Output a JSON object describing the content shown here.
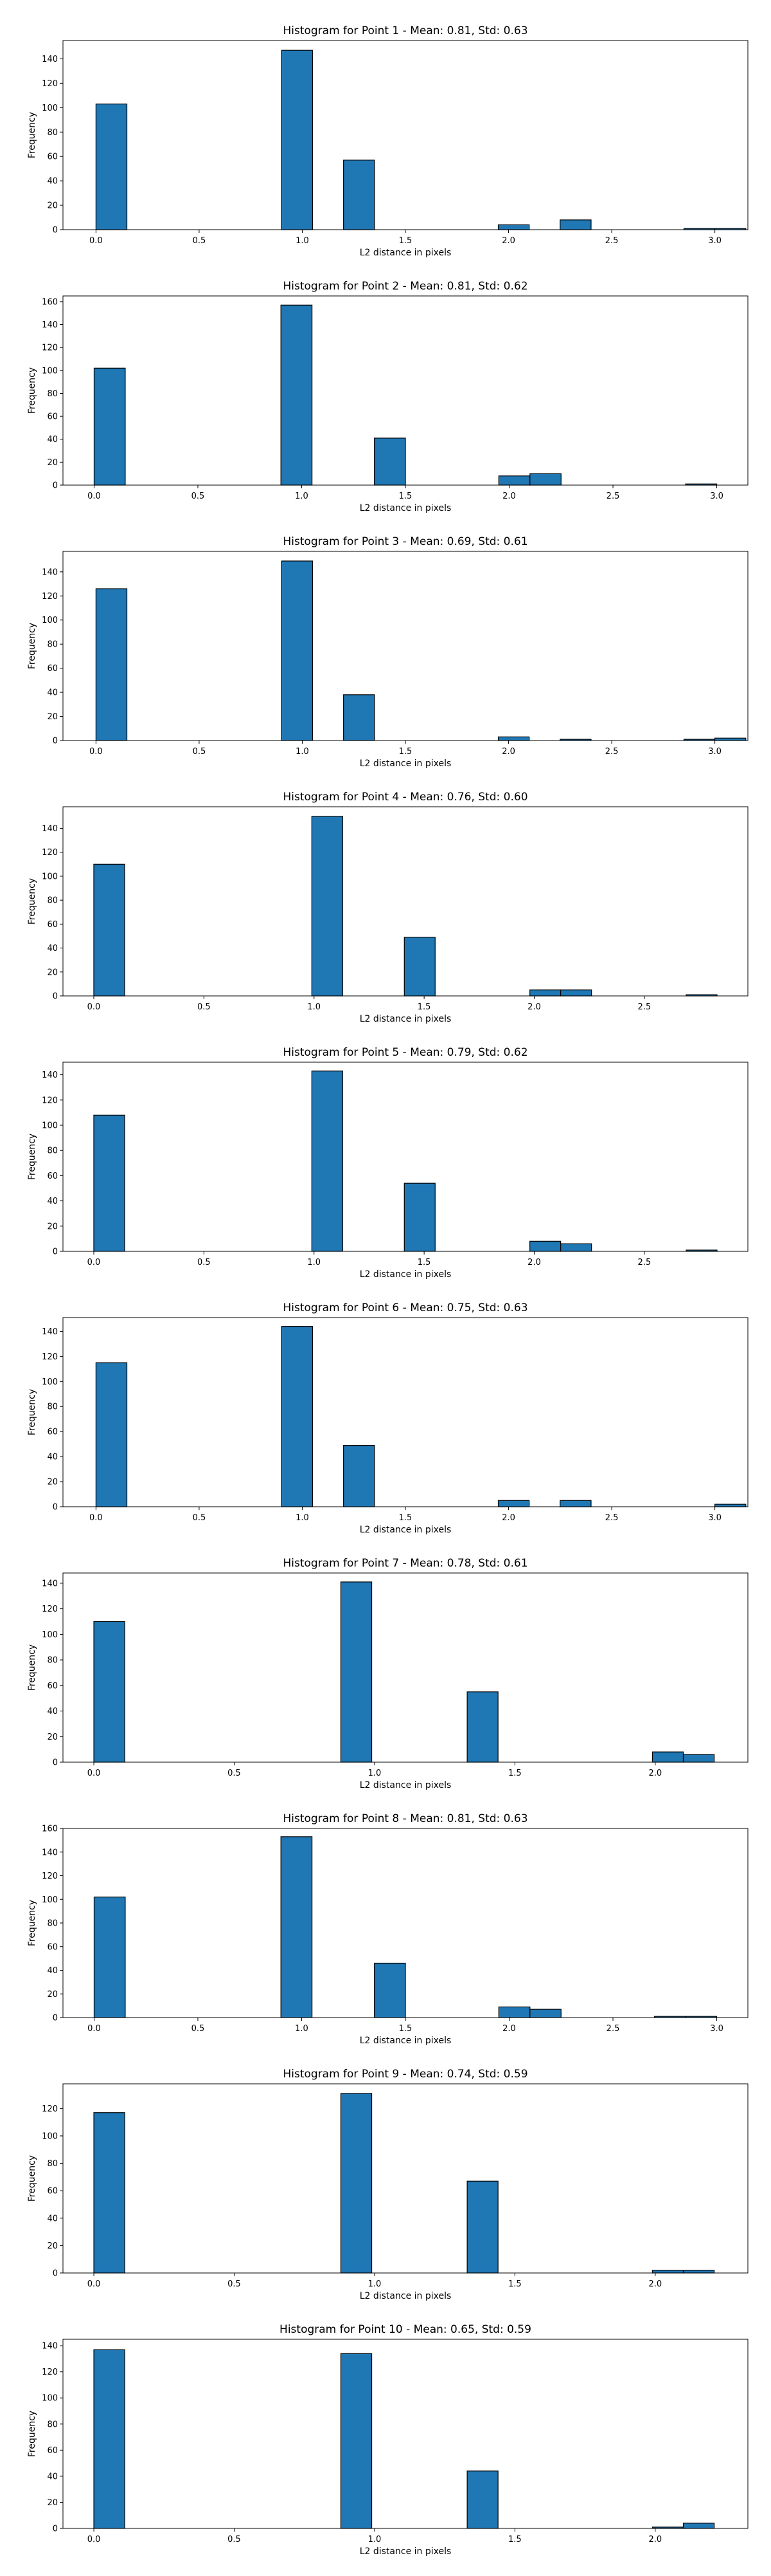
{
  "figure": {
    "background": "#ffffff"
  },
  "chart_data": [
    {
      "type": "bar",
      "title": "Histogram for Point 1 - Mean: 0.81, Std: 0.63",
      "xlabel": "L2 distance in pixels",
      "ylabel": "Frequency",
      "xlim": [
        -0.16,
        3.16
      ],
      "ylim": [
        0,
        155
      ],
      "xticks": [
        "0.0",
        "0.5",
        "1.0",
        "1.5",
        "2.0",
        "2.5",
        "3.0"
      ],
      "yticks": [
        "0",
        "20",
        "40",
        "60",
        "80",
        "100",
        "120",
        "140"
      ],
      "bar_color": "#1f77b4",
      "edge_color": "#000000",
      "bars": [
        {
          "x0": 0.0,
          "x1": 0.15,
          "value": 103
        },
        {
          "x0": 0.9,
          "x1": 1.05,
          "value": 147
        },
        {
          "x0": 1.2,
          "x1": 1.35,
          "value": 57
        },
        {
          "x0": 1.95,
          "x1": 2.1,
          "value": 4
        },
        {
          "x0": 2.1,
          "x1": 2.25,
          "value": 0
        },
        {
          "x0": 2.25,
          "x1": 2.4,
          "value": 8
        },
        {
          "x0": 2.85,
          "x1": 3.0,
          "value": 1
        },
        {
          "x0": 3.0,
          "x1": 3.15,
          "value": 1
        }
      ]
    },
    {
      "type": "bar",
      "title": "Histogram for Point 2 - Mean: 0.81, Std: 0.62",
      "xlabel": "L2 distance in pixels",
      "ylabel": "Frequency",
      "xlim": [
        -0.15,
        3.15
      ],
      "ylim": [
        0,
        165
      ],
      "xticks": [
        "0.0",
        "0.5",
        "1.0",
        "1.5",
        "2.0",
        "2.5",
        "3.0"
      ],
      "yticks": [
        "0",
        "20",
        "40",
        "60",
        "80",
        "100",
        "120",
        "140",
        "160"
      ],
      "bar_color": "#1f77b4",
      "edge_color": "#000000",
      "bars": [
        {
          "x0": 0.0,
          "x1": 0.15,
          "value": 102
        },
        {
          "x0": 0.9,
          "x1": 1.05,
          "value": 157
        },
        {
          "x0": 1.35,
          "x1": 1.5,
          "value": 41
        },
        {
          "x0": 1.95,
          "x1": 2.1,
          "value": 8
        },
        {
          "x0": 2.1,
          "x1": 2.25,
          "value": 10
        },
        {
          "x0": 2.85,
          "x1": 3.0,
          "value": 1
        }
      ]
    },
    {
      "type": "bar",
      "title": "Histogram for Point 3 - Mean: 0.69, Std: 0.61",
      "xlabel": "L2 distance in pixels",
      "ylabel": "Frequency",
      "xlim": [
        -0.16,
        3.16
      ],
      "ylim": [
        0,
        157
      ],
      "xticks": [
        "0.0",
        "0.5",
        "1.0",
        "1.5",
        "2.0",
        "2.5",
        "3.0"
      ],
      "yticks": [
        "0",
        "20",
        "40",
        "60",
        "80",
        "100",
        "120",
        "140"
      ],
      "bar_color": "#1f77b4",
      "edge_color": "#000000",
      "bars": [
        {
          "x0": 0.0,
          "x1": 0.15,
          "value": 126
        },
        {
          "x0": 0.9,
          "x1": 1.05,
          "value": 149
        },
        {
          "x0": 1.2,
          "x1": 1.35,
          "value": 38
        },
        {
          "x0": 1.95,
          "x1": 2.1,
          "value": 3
        },
        {
          "x0": 2.25,
          "x1": 2.4,
          "value": 1
        },
        {
          "x0": 2.85,
          "x1": 3.0,
          "value": 1
        },
        {
          "x0": 3.0,
          "x1": 3.15,
          "value": 2
        }
      ]
    },
    {
      "type": "bar",
      "title": "Histogram for Point 4 - Mean: 0.76, Std: 0.60",
      "xlabel": "L2 distance in pixels",
      "ylabel": "Frequency",
      "xlim": [
        -0.14,
        2.97
      ],
      "ylim": [
        0,
        158
      ],
      "xticks": [
        "0.0",
        "0.5",
        "1.0",
        "1.5",
        "2.0",
        "2.5"
      ],
      "yticks": [
        "0",
        "20",
        "40",
        "60",
        "80",
        "100",
        "120",
        "140"
      ],
      "bar_color": "#1f77b4",
      "edge_color": "#000000",
      "bars": [
        {
          "x0": 0.0,
          "x1": 0.14,
          "value": 110
        },
        {
          "x0": 0.99,
          "x1": 1.13,
          "value": 150
        },
        {
          "x0": 1.41,
          "x1": 1.55,
          "value": 49
        },
        {
          "x0": 1.98,
          "x1": 2.12,
          "value": 5
        },
        {
          "x0": 2.12,
          "x1": 2.26,
          "value": 5
        },
        {
          "x0": 2.69,
          "x1": 2.83,
          "value": 1
        }
      ]
    },
    {
      "type": "bar",
      "title": "Histogram for Point 5 - Mean: 0.79, Std: 0.62",
      "xlabel": "L2 distance in pixels",
      "ylabel": "Frequency",
      "xlim": [
        -0.14,
        2.97
      ],
      "ylim": [
        0,
        150
      ],
      "xticks": [
        "0.0",
        "0.5",
        "1.0",
        "1.5",
        "2.0",
        "2.5"
      ],
      "yticks": [
        "0",
        "20",
        "40",
        "60",
        "80",
        "100",
        "120",
        "140"
      ],
      "bar_color": "#1f77b4",
      "edge_color": "#000000",
      "bars": [
        {
          "x0": 0.0,
          "x1": 0.14,
          "value": 108
        },
        {
          "x0": 0.99,
          "x1": 1.13,
          "value": 143
        },
        {
          "x0": 1.41,
          "x1": 1.55,
          "value": 54
        },
        {
          "x0": 1.98,
          "x1": 2.12,
          "value": 8
        },
        {
          "x0": 2.12,
          "x1": 2.26,
          "value": 6
        },
        {
          "x0": 2.69,
          "x1": 2.83,
          "value": 1
        }
      ]
    },
    {
      "type": "bar",
      "title": "Histogram for Point 6 - Mean: 0.75, Std: 0.63",
      "xlabel": "L2 distance in pixels",
      "ylabel": "Frequency",
      "xlim": [
        -0.16,
        3.16
      ],
      "ylim": [
        0,
        151
      ],
      "xticks": [
        "0.0",
        "0.5",
        "1.0",
        "1.5",
        "2.0",
        "2.5",
        "3.0"
      ],
      "yticks": [
        "0",
        "20",
        "40",
        "60",
        "80",
        "100",
        "120",
        "140"
      ],
      "bar_color": "#1f77b4",
      "edge_color": "#000000",
      "bars": [
        {
          "x0": 0.0,
          "x1": 0.15,
          "value": 115
        },
        {
          "x0": 0.9,
          "x1": 1.05,
          "value": 144
        },
        {
          "x0": 1.2,
          "x1": 1.35,
          "value": 49
        },
        {
          "x0": 1.95,
          "x1": 2.1,
          "value": 5
        },
        {
          "x0": 2.25,
          "x1": 2.4,
          "value": 5
        },
        {
          "x0": 3.0,
          "x1": 3.15,
          "value": 2
        }
      ]
    },
    {
      "type": "bar",
      "title": "Histogram for Point 7 - Mean: 0.78, Std: 0.61",
      "xlabel": "L2 distance in pixels",
      "ylabel": "Frequency",
      "xlim": [
        -0.11,
        2.33
      ],
      "ylim": [
        0,
        148
      ],
      "xticks": [
        "0.0",
        "0.5",
        "1.0",
        "1.5",
        "2.0"
      ],
      "yticks": [
        "0",
        "20",
        "40",
        "60",
        "80",
        "100",
        "120",
        "140"
      ],
      "bar_color": "#1f77b4",
      "edge_color": "#000000",
      "bars": [
        {
          "x0": 0.0,
          "x1": 0.11,
          "value": 110
        },
        {
          "x0": 0.88,
          "x1": 0.99,
          "value": 141
        },
        {
          "x0": 1.33,
          "x1": 1.44,
          "value": 55
        },
        {
          "x0": 1.99,
          "x1": 2.1,
          "value": 8
        },
        {
          "x0": 2.1,
          "x1": 2.21,
          "value": 6
        }
      ]
    },
    {
      "type": "bar",
      "title": "Histogram for Point 8 - Mean: 0.81, Std: 0.63",
      "xlabel": "L2 distance in pixels",
      "ylabel": "Frequency",
      "xlim": [
        -0.15,
        3.15
      ],
      "ylim": [
        0,
        160
      ],
      "xticks": [
        "0.0",
        "0.5",
        "1.0",
        "1.5",
        "2.0",
        "2.5",
        "3.0"
      ],
      "yticks": [
        "0",
        "20",
        "40",
        "60",
        "80",
        "100",
        "120",
        "140",
        "160"
      ],
      "bar_color": "#1f77b4",
      "edge_color": "#000000",
      "bars": [
        {
          "x0": 0.0,
          "x1": 0.15,
          "value": 102
        },
        {
          "x0": 0.9,
          "x1": 1.05,
          "value": 153
        },
        {
          "x0": 1.35,
          "x1": 1.5,
          "value": 46
        },
        {
          "x0": 1.95,
          "x1": 2.1,
          "value": 9
        },
        {
          "x0": 2.1,
          "x1": 2.25,
          "value": 7
        },
        {
          "x0": 2.7,
          "x1": 2.85,
          "value": 1
        },
        {
          "x0": 2.85,
          "x1": 3.0,
          "value": 1
        }
      ]
    },
    {
      "type": "bar",
      "title": "Histogram for Point 9 - Mean: 0.74, Std: 0.59",
      "xlabel": "L2 distance in pixels",
      "ylabel": "Frequency",
      "xlim": [
        -0.11,
        2.33
      ],
      "ylim": [
        0,
        138
      ],
      "xticks": [
        "0.0",
        "0.5",
        "1.0",
        "1.5",
        "2.0"
      ],
      "yticks": [
        "0",
        "20",
        "40",
        "60",
        "80",
        "100",
        "120"
      ],
      "bar_color": "#1f77b4",
      "edge_color": "#000000",
      "bars": [
        {
          "x0": 0.0,
          "x1": 0.11,
          "value": 117
        },
        {
          "x0": 0.88,
          "x1": 0.99,
          "value": 131
        },
        {
          "x0": 1.33,
          "x1": 1.44,
          "value": 67
        },
        {
          "x0": 1.99,
          "x1": 2.1,
          "value": 2
        },
        {
          "x0": 2.1,
          "x1": 2.21,
          "value": 2
        }
      ]
    },
    {
      "type": "bar",
      "title": "Histogram for Point 10 - Mean: 0.65, Std: 0.59",
      "xlabel": "L2 distance in pixels",
      "ylabel": "Frequency",
      "xlim": [
        -0.11,
        2.33
      ],
      "ylim": [
        0,
        145
      ],
      "xticks": [
        "0.0",
        "0.5",
        "1.0",
        "1.5",
        "2.0"
      ],
      "yticks": [
        "0",
        "20",
        "40",
        "60",
        "80",
        "100",
        "120",
        "140"
      ],
      "bar_color": "#1f77b4",
      "edge_color": "#000000",
      "bars": [
        {
          "x0": 0.0,
          "x1": 0.11,
          "value": 137
        },
        {
          "x0": 0.88,
          "x1": 0.99,
          "value": 134
        },
        {
          "x0": 1.33,
          "x1": 1.44,
          "value": 44
        },
        {
          "x0": 1.99,
          "x1": 2.1,
          "value": 1
        },
        {
          "x0": 2.1,
          "x1": 2.21,
          "value": 4
        }
      ]
    }
  ]
}
